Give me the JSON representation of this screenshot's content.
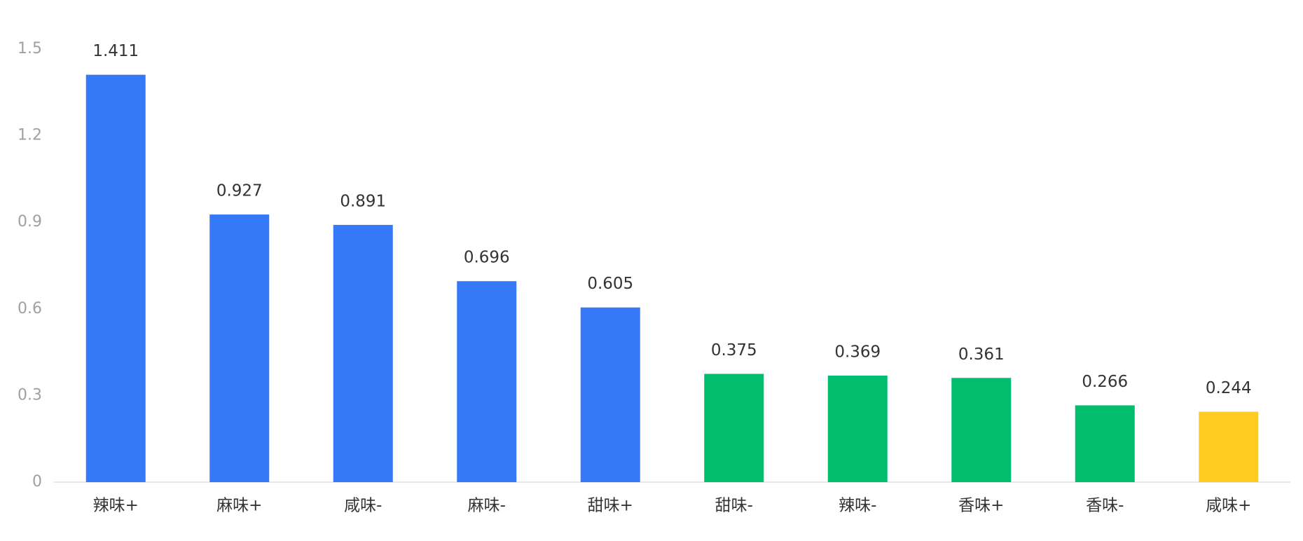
{
  "chart_data": {
    "type": "bar",
    "categories": [
      "辣味+",
      "麻味+",
      "咸味-",
      "麻味-",
      "甜味+",
      "甜味-",
      "辣味-",
      "香味+",
      "香味-",
      "咸味+"
    ],
    "values": [
      1.411,
      0.927,
      0.891,
      0.696,
      0.605,
      0.375,
      0.369,
      0.361,
      0.266,
      0.244
    ],
    "colors": [
      "#3579f6",
      "#3579f6",
      "#3579f6",
      "#3579f6",
      "#3579f6",
      "#00be6e",
      "#00be6e",
      "#00be6e",
      "#00be6e",
      "#ffcc22"
    ],
    "ylim": [
      0,
      1.5
    ],
    "yticks": [
      0,
      0.3,
      0.6,
      0.9,
      1.2,
      1.5
    ],
    "grid": false
  }
}
